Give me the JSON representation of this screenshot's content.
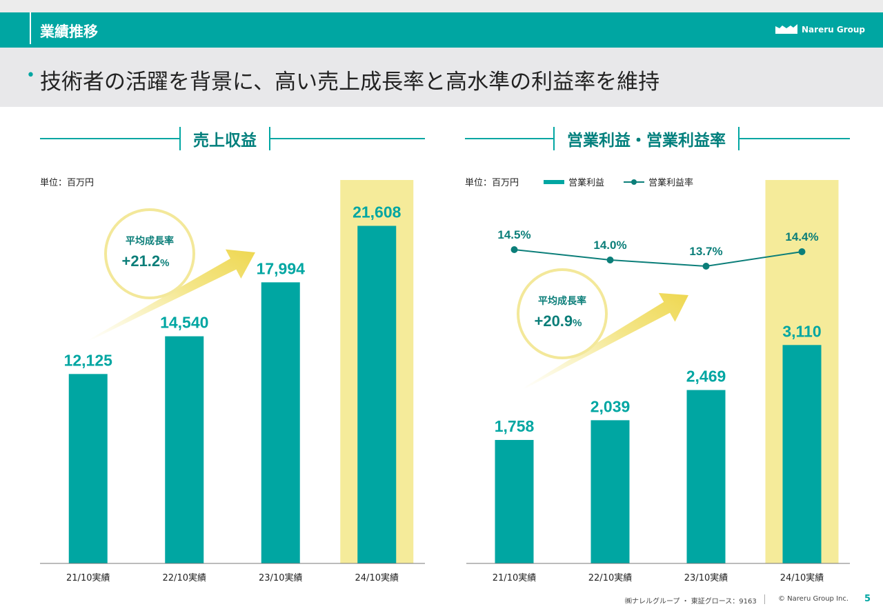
{
  "header": {
    "title": "業績推移",
    "logo_text": "Nareru Group"
  },
  "headline": "技術者の活躍を背景に、高い売上成長率と高水準の利益率を維持",
  "colors": {
    "bar": "#00a6a2",
    "highlight": "#f5eb9a",
    "line": "#0b7e79",
    "accent_text": "#00a6a2"
  },
  "footer": {
    "company": "㈱ナレルグループ ・ 東証グロース：9163",
    "copyright": "© Nareru Group Inc.",
    "page": "5"
  },
  "chart_data": [
    {
      "type": "bar",
      "title": "売上収益",
      "unit": "単位：百万円",
      "categories": [
        "21/10実績",
        "22/10実績",
        "23/10実績",
        "24/10実績"
      ],
      "values": [
        12125,
        14540,
        17994,
        21608
      ],
      "value_labels": [
        "12,125",
        "14,540",
        "17,994",
        "21,608"
      ],
      "highlighted_category": "24/10実績",
      "growth_label": "平均成長率",
      "growth_value": "+21.2",
      "growth_unit": "%",
      "ylim": [
        0,
        24500
      ]
    },
    {
      "type": "bar",
      "title": "営業利益・営業利益率",
      "unit": "単位：百万円",
      "categories": [
        "21/10実績",
        "22/10実績",
        "23/10実績",
        "24/10実績"
      ],
      "series": [
        {
          "name": "営業利益",
          "type": "bar",
          "values": [
            1758,
            2039,
            2469,
            3110
          ],
          "value_labels": [
            "1,758",
            "2,039",
            "2,469",
            "3,110"
          ]
        },
        {
          "name": "営業利益率",
          "type": "line",
          "values": [
            14.5,
            14.0,
            13.7,
            14.4
          ],
          "value_labels": [
            "14.5%",
            "14.0%",
            "13.7%",
            "14.4%"
          ]
        }
      ],
      "highlighted_category": "24/10実績",
      "growth_label": "平均成長率",
      "growth_value": "+20.9",
      "growth_unit": "%",
      "ylim": [
        0,
        5450
      ]
    }
  ]
}
